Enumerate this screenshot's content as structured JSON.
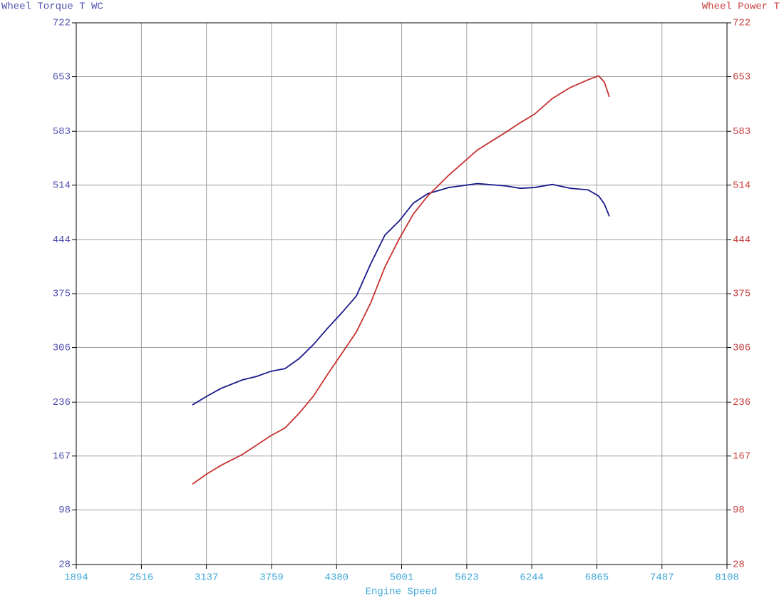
{
  "chart_data": {
    "type": "line",
    "y_label": "Wheel Torque T WC",
    "y2_label": "Wheel Power T",
    "x_label": "Engine Speed",
    "x": [
      3003,
      3140,
      3276,
      3480,
      3616,
      3752,
      3888,
      4024,
      4160,
      4296,
      4433,
      4569,
      4705,
      4841,
      4977,
      5113,
      5249,
      5453,
      5725,
      5998,
      6134,
      6270,
      6440,
      6610,
      6781,
      6883,
      6937,
      6985
    ],
    "series": [
      {
        "name": "Wheel Torque T WC",
        "color": "#1a1a8c",
        "axis": "y",
        "values": [
          232.5,
          243.5,
          253.6,
          264.5,
          269,
          275.5,
          279,
          292,
          310,
          331,
          351,
          372,
          413,
          450,
          468,
          491,
          503,
          511,
          516,
          513,
          510,
          511,
          515,
          510,
          508,
          500,
          490,
          474
        ]
      },
      {
        "name": "Wheel Power T",
        "color": "#c83232",
        "axis": "y2",
        "values": [
          131,
          144,
          155,
          169,
          181,
          193,
          203,
          222,
          244,
          272,
          299,
          326,
          363,
          409,
          445,
          477,
          500,
          527,
          559,
          582,
          594,
          605,
          625,
          639,
          649,
          654,
          646,
          627
        ]
      }
    ],
    "xlim": [
      1894,
      8108
    ],
    "xticks": [
      1894,
      2516,
      3137,
      3759,
      4380,
      5001,
      5623,
      6244,
      6865,
      7487,
      8108
    ],
    "ylim": [
      28,
      722
    ],
    "yticks": [
      28,
      98,
      167,
      236,
      306,
      375,
      444,
      514,
      583,
      653,
      722
    ],
    "y2lim": [
      28,
      722
    ],
    "y2ticks": [
      28,
      98,
      167,
      236,
      306,
      375,
      444,
      514,
      583,
      653,
      722
    ],
    "grid": true
  }
}
